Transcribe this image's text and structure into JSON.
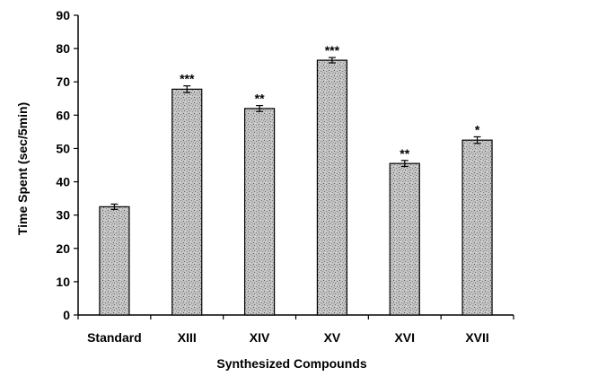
{
  "chart_data": {
    "type": "bar",
    "title": "",
    "xlabel": "Synthesized Compounds",
    "ylabel": "Time Spent (sec/5min)",
    "ylim": [
      0,
      90
    ],
    "yticks": [
      "0",
      "10",
      "20",
      "30",
      "40",
      "50",
      "60",
      "70",
      "80",
      "90"
    ],
    "grid": false,
    "categories": [
      "Standard",
      "XIII",
      "XIV",
      "XV",
      "XVI",
      "XVII"
    ],
    "values": [
      32.5,
      67.8,
      62.0,
      76.5,
      45.5,
      52.5
    ],
    "errors": [
      0.8,
      1.0,
      0.9,
      0.8,
      0.9,
      1.0
    ],
    "significance": [
      "",
      "***",
      "**",
      "***",
      "**",
      "*"
    ],
    "bar_fill": "speckled gray"
  }
}
